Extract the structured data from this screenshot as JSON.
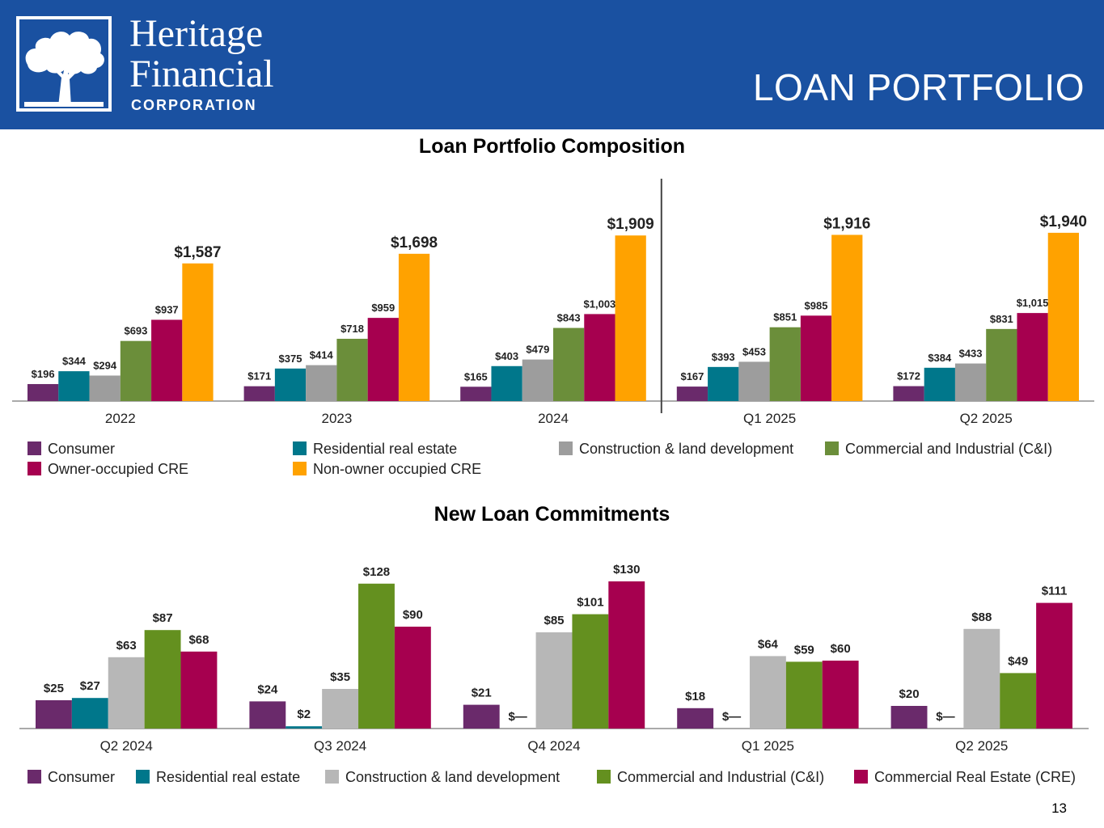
{
  "header": {
    "brand_line1": "Heritage",
    "brand_line2": "Financial",
    "brand_line3": "CORPORATION",
    "logo_icon": "oak-tree-icon",
    "title": "LOAN PORTFOLIO",
    "background": "#1a51a1"
  },
  "page_number": "13",
  "chart_data": [
    {
      "type": "bar",
      "title": "Loan Portfolio Composition",
      "categories": [
        "2022",
        "2023",
        "2024",
        "Q1 2025",
        "Q2 2025"
      ],
      "series": [
        {
          "name": "Consumer",
          "color": "#6a2a6b",
          "values": [
            196,
            171,
            165,
            167,
            172
          ],
          "labels": [
            "$196",
            "$171",
            "$165",
            "$167",
            "$172"
          ]
        },
        {
          "name": "Residential real estate",
          "color": "#00778b",
          "values": [
            344,
            375,
            403,
            393,
            384
          ],
          "labels": [
            "$344",
            "$375",
            "$403",
            "$393",
            "$384"
          ]
        },
        {
          "name": "Construction & land development",
          "color": "#9d9d9d",
          "values": [
            294,
            414,
            479,
            453,
            433
          ],
          "labels": [
            "$294",
            "$414",
            "$479",
            "$453",
            "$433"
          ]
        },
        {
          "name": "Commercial and Industrial (C&I)",
          "color": "#6b8e3a",
          "values": [
            693,
            718,
            843,
            851,
            831
          ],
          "labels": [
            "$693",
            "$718",
            "$843",
            "$851",
            "$831"
          ]
        },
        {
          "name": "Owner-occupied CRE",
          "color": "#a6004f",
          "values": [
            937,
            959,
            1003,
            985,
            1015
          ],
          "labels": [
            "$937",
            "$959",
            "$1,003",
            "$985",
            "$1,015"
          ]
        },
        {
          "name": "Non-owner occupied CRE",
          "color": "#ffa200",
          "values": [
            1587,
            1698,
            1909,
            1916,
            1940
          ],
          "labels": [
            "$1,587",
            "$1,698",
            "$1,909",
            "$1,916",
            "$1,940"
          ]
        }
      ],
      "ylim": [
        0,
        2200
      ],
      "divider_after_category": 2,
      "legend_position": "bottom",
      "grid": false
    },
    {
      "type": "bar",
      "title": "New Loan Commitments",
      "categories": [
        "Q2 2024",
        "Q3 2024",
        "Q4 2024",
        "Q1 2025",
        "Q2 2025"
      ],
      "series": [
        {
          "name": "Consumer",
          "color": "#6a2a6b",
          "values": [
            25,
            24,
            21,
            18,
            20
          ],
          "labels": [
            "$25",
            "$24",
            "$21",
            "$18",
            "$20"
          ]
        },
        {
          "name": "Residential real estate",
          "color": "#00778b",
          "values": [
            27,
            2,
            0,
            0,
            0
          ],
          "labels": [
            "$27",
            "$2",
            "$—",
            "$—",
            "$—"
          ]
        },
        {
          "name": "Construction & land development",
          "color": "#b7b7b7",
          "values": [
            63,
            35,
            85,
            64,
            88
          ],
          "labels": [
            "$63",
            "$35",
            "$85",
            "$64",
            "$88"
          ]
        },
        {
          "name": "Commercial and Industrial (C&I)",
          "color": "#64901f",
          "values": [
            87,
            128,
            101,
            59,
            49
          ],
          "labels": [
            "$87",
            "$128",
            "$101",
            "$59",
            "$49"
          ]
        },
        {
          "name": "Commercial Real Estate (CRE)",
          "color": "#a6004f",
          "values": [
            68,
            90,
            130,
            60,
            111
          ],
          "labels": [
            "$68",
            "$90",
            "$130",
            "$60",
            "$111"
          ]
        }
      ],
      "ylim": [
        0,
        140
      ],
      "legend_position": "bottom",
      "grid": false
    }
  ]
}
